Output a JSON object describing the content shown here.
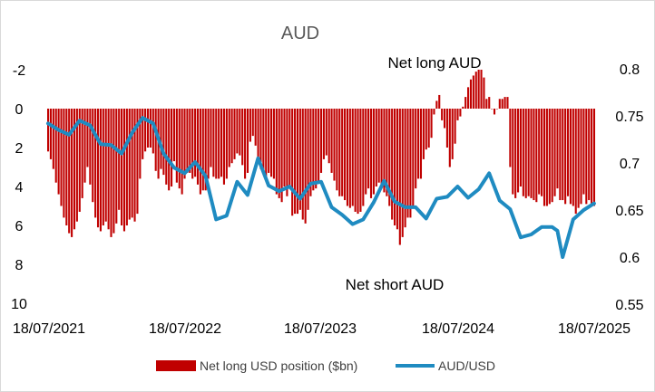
{
  "chart_data": {
    "type": "bar+line",
    "title": "AUD",
    "annotations": {
      "top": "Net long AUD",
      "bottom": "Net short AUD"
    },
    "x_axis": {
      "type": "date",
      "tick_labels": [
        "18/07/2021",
        "18/07/2022",
        "18/07/2023",
        "18/07/2024",
        "18/07/2025"
      ]
    },
    "y_left": {
      "reversed": true,
      "range": [
        -2,
        10
      ],
      "tick_labels": [
        "-2",
        "0",
        "2",
        "4",
        "6",
        "8",
        "10"
      ]
    },
    "y_right": {
      "range": [
        0.55,
        0.8
      ],
      "tick_labels": [
        "0.8",
        "0.75",
        "0.7",
        "0.65",
        "0.6",
        "0.55"
      ]
    },
    "grid": false,
    "legend_position": "bottom",
    "colors": {
      "bars": "#c00000",
      "line": "#1f8bc1"
    },
    "series": [
      {
        "name": "Net long USD position ($bn)",
        "type": "bar",
        "axis": "left",
        "x": [
          "2021-07-18",
          "2021-07-25",
          "2021-08-01",
          "2021-08-08",
          "2021-08-15",
          "2021-08-22",
          "2021-08-29",
          "2021-09-05",
          "2021-09-12",
          "2021-09-19",
          "2021-09-26",
          "2021-10-03",
          "2021-10-10",
          "2021-10-17",
          "2021-10-24",
          "2021-10-31",
          "2021-11-07",
          "2021-11-14",
          "2021-11-21",
          "2021-11-28",
          "2021-12-05",
          "2021-12-12",
          "2021-12-19",
          "2021-12-26",
          "2022-01-02",
          "2022-01-09",
          "2022-01-16",
          "2022-01-23",
          "2022-01-30",
          "2022-02-06",
          "2022-02-13",
          "2022-02-20",
          "2022-02-27",
          "2022-03-06",
          "2022-03-13",
          "2022-03-20",
          "2022-03-27",
          "2022-04-03",
          "2022-04-10",
          "2022-04-17",
          "2022-04-24",
          "2022-05-01",
          "2022-05-08",
          "2022-05-15",
          "2022-05-22",
          "2022-05-29",
          "2022-06-05",
          "2022-06-12",
          "2022-06-19",
          "2022-06-26",
          "2022-07-03",
          "2022-07-10",
          "2022-07-17",
          "2022-07-24",
          "2022-07-31",
          "2022-08-07",
          "2022-08-14",
          "2022-08-21",
          "2022-08-28",
          "2022-09-04",
          "2022-09-11",
          "2022-09-18",
          "2022-09-25",
          "2022-10-02",
          "2022-10-09",
          "2022-10-16",
          "2022-10-23",
          "2022-10-30",
          "2022-11-06",
          "2022-11-13",
          "2022-11-20",
          "2022-11-27",
          "2022-12-04",
          "2022-12-11",
          "2022-12-18",
          "2022-12-25",
          "2023-01-01",
          "2023-01-08",
          "2023-01-15",
          "2023-01-22",
          "2023-01-29",
          "2023-02-05",
          "2023-02-12",
          "2023-02-19",
          "2023-02-26",
          "2023-03-05",
          "2023-03-12",
          "2023-03-19",
          "2023-03-26",
          "2023-04-02",
          "2023-04-09",
          "2023-04-16",
          "2023-04-23",
          "2023-04-30",
          "2023-05-07",
          "2023-05-14",
          "2023-05-21",
          "2023-05-28",
          "2023-06-04",
          "2023-06-11",
          "2023-06-18",
          "2023-06-25",
          "2023-07-02",
          "2023-07-09",
          "2023-07-16",
          "2023-07-23",
          "2023-07-30",
          "2023-08-06",
          "2023-08-13",
          "2023-08-20",
          "2023-08-27",
          "2023-09-03",
          "2023-09-10",
          "2023-09-17",
          "2023-09-24",
          "2023-10-01",
          "2023-10-08",
          "2023-10-15",
          "2023-10-22",
          "2023-10-29",
          "2023-11-05",
          "2023-11-12",
          "2023-11-19",
          "2023-11-26",
          "2023-12-03",
          "2023-12-10",
          "2023-12-17",
          "2023-12-24",
          "2023-12-31",
          "2024-01-07",
          "2024-01-14",
          "2024-01-21",
          "2024-01-28",
          "2024-02-04",
          "2024-02-11",
          "2024-02-18",
          "2024-02-25",
          "2024-03-03",
          "2024-03-10",
          "2024-03-17",
          "2024-03-24",
          "2024-03-31",
          "2024-04-07",
          "2024-04-14",
          "2024-04-21",
          "2024-04-28",
          "2024-05-05",
          "2024-05-12",
          "2024-05-19",
          "2024-05-26",
          "2024-06-02",
          "2024-06-09",
          "2024-06-16",
          "2024-06-23",
          "2024-06-30",
          "2024-07-07",
          "2024-07-14",
          "2024-07-21",
          "2024-07-28",
          "2024-08-04",
          "2024-08-11",
          "2024-08-18",
          "2024-08-25",
          "2024-09-01",
          "2024-09-08",
          "2024-09-15",
          "2024-09-22",
          "2024-09-29",
          "2024-10-06",
          "2024-10-13",
          "2024-10-20",
          "2024-10-27",
          "2024-11-03",
          "2024-11-10",
          "2024-11-17",
          "2024-11-24",
          "2024-12-01",
          "2024-12-08",
          "2024-12-15",
          "2024-12-22",
          "2024-12-29",
          "2025-01-05",
          "2025-01-12",
          "2025-01-19",
          "2025-01-26",
          "2025-02-02",
          "2025-02-09",
          "2025-02-16",
          "2025-02-23",
          "2025-03-02",
          "2025-03-09",
          "2025-03-16",
          "2025-03-23",
          "2025-03-30",
          "2025-04-06",
          "2025-04-13",
          "2025-04-20",
          "2025-04-27",
          "2025-05-04",
          "2025-05-11",
          "2025-05-18",
          "2025-05-25",
          "2025-06-01",
          "2025-06-08",
          "2025-06-15",
          "2025-06-22",
          "2025-06-29",
          "2025-07-06",
          "2025-07-13"
        ],
        "values": [
          2.2,
          2.6,
          3.1,
          3.8,
          4.4,
          5.0,
          5.6,
          6.0,
          6.4,
          6.6,
          6.2,
          5.8,
          5.3,
          4.6,
          3.8,
          3.0,
          3.9,
          4.8,
          5.6,
          6.1,
          6.3,
          6.0,
          5.8,
          6.2,
          6.6,
          6.4,
          5.9,
          5.2,
          6.0,
          6.3,
          6.0,
          5.7,
          5.6,
          5.8,
          5.4,
          3.6,
          2.6,
          2.2,
          2.0,
          2.0,
          2.3,
          3.2,
          3.6,
          3.1,
          3.4,
          3.9,
          4.2,
          4.0,
          2.7,
          3.8,
          4.1,
          4.4,
          3.6,
          3.3,
          3.3,
          3.6,
          3.5,
          3.9,
          4.4,
          4.2,
          4.2,
          3.6,
          3.0,
          3.5,
          3.6,
          3.6,
          3.5,
          3.9,
          3.6,
          3.0,
          2.8,
          2.6,
          2.3,
          2.4,
          2.9,
          3.6,
          3.3,
          1.7,
          1.4,
          1.9,
          2.5,
          3.1,
          3.2,
          3.5,
          3.3,
          3.5,
          3.6,
          4.4,
          4.6,
          4.8,
          4.0,
          4.5,
          4.1,
          5.5,
          5.4,
          5.4,
          5.2,
          5.7,
          5.9,
          5.2,
          4.5,
          4.2,
          4.1,
          3.8,
          3.3,
          2.6,
          2.4,
          2.8,
          3.3,
          3.7,
          4.2,
          4.5,
          4.5,
          4.7,
          5.0,
          5.1,
          5.0,
          5.3,
          5.4,
          5.3,
          5.0,
          4.4,
          4.1,
          4.6,
          4.4,
          4.0,
          3.8,
          4.1,
          4.3,
          4.5,
          5.0,
          5.7,
          6.0,
          6.2,
          7.0,
          6.6,
          6.1,
          5.6,
          5.6,
          5.0,
          4.1,
          3.6,
          3.6,
          2.6,
          2.1,
          2.0,
          1.5,
          0.3,
          -0.4,
          -0.7,
          0.6,
          1.0,
          2.0,
          3.0,
          2.6,
          1.8,
          0.6,
          0.4,
          -0.1,
          -0.6,
          -1.1,
          -1.5,
          -1.7,
          -1.9,
          -2.0,
          -2.0,
          -1.6,
          -0.5,
          -0.6,
          0.0,
          0.3,
          0.0,
          -0.5,
          -0.5,
          -0.6,
          -0.6,
          3.0,
          4.4,
          4.6,
          4.3,
          4.0,
          4.5,
          4.6,
          4.5,
          4.6,
          4.7,
          4.8,
          4.4,
          4.5,
          5.0,
          5.0,
          4.9,
          4.8,
          4.5,
          4.1,
          4.7,
          4.7,
          4.9,
          4.5,
          4.9,
          5.0,
          5.4,
          5.1,
          4.9,
          4.4,
          4.9,
          4.7,
          4.9,
          5.0
        ]
      },
      {
        "name": "AUD/USD",
        "type": "line",
        "axis": "right",
        "x": [
          "2021-07-18",
          "2021-08-15",
          "2021-09-12",
          "2021-10-10",
          "2021-11-07",
          "2021-12-05",
          "2022-01-02",
          "2022-01-30",
          "2022-02-27",
          "2022-03-27",
          "2022-04-24",
          "2022-05-22",
          "2022-06-19",
          "2022-07-17",
          "2022-08-14",
          "2022-09-11",
          "2022-10-09",
          "2022-11-06",
          "2022-12-04",
          "2023-01-01",
          "2023-01-29",
          "2023-02-26",
          "2023-03-26",
          "2023-04-23",
          "2023-05-21",
          "2023-06-18",
          "2023-07-16",
          "2023-08-13",
          "2023-09-10",
          "2023-10-08",
          "2023-11-05",
          "2023-12-03",
          "2023-12-31",
          "2024-01-28",
          "2024-02-25",
          "2024-03-24",
          "2024-04-21",
          "2024-05-19",
          "2024-06-16",
          "2024-07-14",
          "2024-08-11",
          "2024-09-08",
          "2024-10-06",
          "2024-11-03",
          "2024-12-01",
          "2024-12-29",
          "2025-01-26",
          "2025-02-23",
          "2025-03-23",
          "2025-04-06",
          "2025-04-20",
          "2025-05-18",
          "2025-06-15",
          "2025-07-13"
        ],
        "values": [
          0.742,
          0.735,
          0.73,
          0.745,
          0.74,
          0.72,
          0.719,
          0.71,
          0.732,
          0.748,
          0.742,
          0.71,
          0.695,
          0.689,
          0.701,
          0.686,
          0.64,
          0.644,
          0.68,
          0.666,
          0.705,
          0.676,
          0.67,
          0.675,
          0.662,
          0.678,
          0.68,
          0.653,
          0.645,
          0.635,
          0.64,
          0.658,
          0.681,
          0.659,
          0.653,
          0.653,
          0.641,
          0.662,
          0.664,
          0.675,
          0.663,
          0.672,
          0.689,
          0.66,
          0.651,
          0.621,
          0.624,
          0.632,
          0.632,
          0.628,
          0.6,
          0.64,
          0.65,
          0.657
        ]
      }
    ]
  },
  "legend": {
    "bar_label": "Net long USD position ($bn)",
    "line_label": "AUD/USD"
  }
}
